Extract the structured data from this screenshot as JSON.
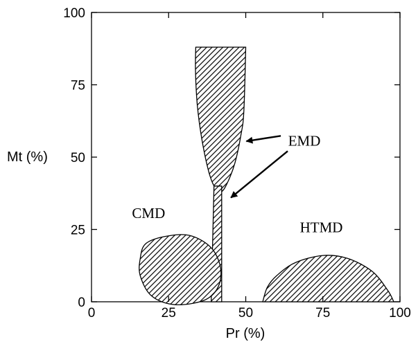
{
  "chart_data": {
    "type": "diagram",
    "xlabel": "Pr (%)",
    "ylabel": "Mt (%)",
    "xlim": [
      0,
      100
    ],
    "ylim": [
      0,
      100
    ],
    "xticks": [
      "0",
      "25",
      "50",
      "75",
      "100"
    ],
    "yticks": [
      "0",
      "25",
      "50",
      "75",
      "100"
    ],
    "regions": [
      {
        "label": "EMD",
        "part": "upper",
        "points": [
          [
            33.8,
            88
          ],
          [
            50,
            88
          ],
          [
            49.4,
            66
          ],
          [
            48.5,
            58
          ],
          [
            46.5,
            48
          ],
          [
            44,
            41
          ],
          [
            42,
            38
          ],
          [
            40,
            39.5
          ],
          [
            38,
            45
          ],
          [
            35.8,
            56
          ],
          [
            34.3,
            68
          ],
          [
            33.7,
            80
          ]
        ]
      },
      {
        "label": "EMD",
        "part": "stem",
        "points": [
          [
            39.7,
            40
          ],
          [
            42.2,
            40
          ],
          [
            42.2,
            0
          ],
          [
            38.8,
            0
          ]
        ]
      },
      {
        "label": "CMD",
        "points": [
          [
            17.5,
            20
          ],
          [
            23.5,
            22.5
          ],
          [
            31.5,
            23
          ],
          [
            38.5,
            19
          ],
          [
            41.8,
            12
          ],
          [
            41,
            5
          ],
          [
            36.5,
            0.5
          ],
          [
            27,
            -1
          ],
          [
            19.5,
            2
          ],
          [
            15.8,
            9
          ],
          [
            15.8,
            15
          ]
        ]
      },
      {
        "label": "HTMD",
        "points": [
          [
            55.5,
            0
          ],
          [
            57,
            5
          ],
          [
            60,
            9
          ],
          [
            66,
            13.5
          ],
          [
            75,
            16
          ],
          [
            83,
            15
          ],
          [
            91,
            10.5
          ],
          [
            96,
            4
          ],
          [
            98,
            0
          ]
        ]
      }
    ],
    "annotations": [
      {
        "text": "EMD",
        "x": 69,
        "y": 54,
        "arrows_to": [
          [
            50.2,
            55.5
          ],
          [
            45.2,
            36
          ]
        ]
      },
      {
        "text": "CMD",
        "x": 18.5,
        "y": 29
      },
      {
        "text": "HTMD",
        "x": 74.5,
        "y": 24
      }
    ]
  }
}
